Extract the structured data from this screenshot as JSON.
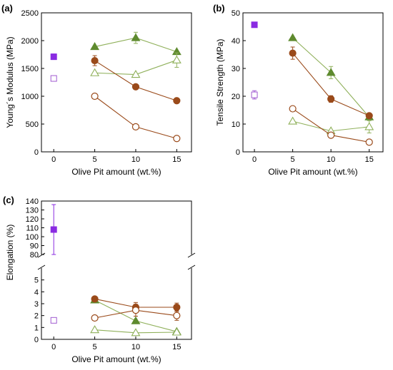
{
  "colors": {
    "brown": "#9a4a1a",
    "olive_line": "#8fb05a",
    "olive_fill": "#5e8a2e",
    "purple": "#8a2be2",
    "purple_open": "#a05ad0",
    "axis": "#000000"
  },
  "chart_data": [
    {
      "id": "a",
      "type": "scatter",
      "panel_label": "(a)",
      "xlabel": "Olive Pit amount (wt.%)",
      "ylabel": "Young´s Modulus (MPa)",
      "xlim": [
        -1.5,
        16.8
      ],
      "ylim": [
        0,
        2500
      ],
      "xticks": [
        0,
        5,
        10,
        15
      ],
      "yticks": [
        0,
        500,
        1000,
        1500,
        2000,
        2500
      ],
      "series": [
        {
          "marker": "square",
          "filled": true,
          "color": "purple",
          "x": [
            0
          ],
          "y": [
            1710
          ],
          "err": [
            50
          ],
          "line": false
        },
        {
          "marker": "square",
          "filled": false,
          "color": "purple_open",
          "x": [
            0
          ],
          "y": [
            1320
          ],
          "err": [
            0
          ],
          "line": false
        },
        {
          "marker": "triangle",
          "filled": true,
          "color": "olive",
          "x": [
            5,
            10,
            15
          ],
          "y": [
            1890,
            2050,
            1800
          ],
          "err": [
            0,
            100,
            0
          ],
          "line": true
        },
        {
          "marker": "triangle",
          "filled": false,
          "color": "olive",
          "x": [
            5,
            10,
            15
          ],
          "y": [
            1420,
            1390,
            1650
          ],
          "err": [
            0,
            0,
            130
          ],
          "line": true
        },
        {
          "marker": "circle",
          "filled": true,
          "color": "brown",
          "x": [
            5,
            10,
            15
          ],
          "y": [
            1640,
            1170,
            920
          ],
          "err": [
            90,
            0,
            0
          ],
          "line": true
        },
        {
          "marker": "circle",
          "filled": false,
          "color": "brown",
          "x": [
            5,
            10,
            15
          ],
          "y": [
            1000,
            450,
            240
          ],
          "err": [
            0,
            0,
            0
          ],
          "line": true
        }
      ]
    },
    {
      "id": "b",
      "type": "scatter",
      "panel_label": "(b)",
      "xlabel": "Olive Pit amount (wt.%)",
      "ylabel": "Tensile Strength (MPa)",
      "xlim": [
        -1.5,
        16.8
      ],
      "ylim": [
        0,
        50
      ],
      "xticks": [
        0,
        5,
        10,
        15
      ],
      "yticks": [
        0,
        10,
        20,
        30,
        40,
        50
      ],
      "series": [
        {
          "marker": "square",
          "filled": true,
          "color": "purple",
          "x": [
            0
          ],
          "y": [
            45.7
          ],
          "err": [
            0.8
          ],
          "line": false
        },
        {
          "marker": "square",
          "filled": false,
          "color": "purple_open",
          "x": [
            0
          ],
          "y": [
            20.5
          ],
          "err": [
            1.5
          ],
          "line": false
        },
        {
          "marker": "triangle",
          "filled": true,
          "color": "olive",
          "x": [
            5,
            10,
            15
          ],
          "y": [
            41,
            28.5,
            12.5
          ],
          "err": [
            0,
            2.2,
            0
          ],
          "line": true
        },
        {
          "marker": "triangle",
          "filled": false,
          "color": "olive",
          "x": [
            5,
            10,
            15
          ],
          "y": [
            11,
            7.5,
            9
          ],
          "err": [
            0,
            0,
            2.2
          ],
          "line": true
        },
        {
          "marker": "circle",
          "filled": true,
          "color": "brown",
          "x": [
            5,
            10,
            15
          ],
          "y": [
            35.5,
            19,
            13
          ],
          "err": [
            2.2,
            1.2,
            0.8
          ],
          "line": true
        },
        {
          "marker": "circle",
          "filled": false,
          "color": "brown",
          "x": [
            5,
            10,
            15
          ],
          "y": [
            15.5,
            6,
            3.5
          ],
          "err": [
            0.6,
            0.6,
            0.6
          ],
          "line": true
        }
      ]
    },
    {
      "id": "c",
      "type": "scatter",
      "panel_label": "(c)",
      "xlabel": "Olive Pit amount (wt.%)",
      "ylabel": "Elongation (%)",
      "xlim": [
        -1.5,
        16.8
      ],
      "axis_break": true,
      "ylim_upper": [
        80,
        140
      ],
      "yticks_upper": [
        80,
        90,
        100,
        110,
        120,
        130,
        140
      ],
      "ylim_lower": [
        0,
        6
      ],
      "yticks_lower": [
        0,
        1,
        2,
        3,
        4,
        5
      ],
      "xticks": [
        0,
        5,
        10,
        15
      ],
      "series": [
        {
          "marker": "square",
          "filled": true,
          "color": "purple",
          "x": [
            0
          ],
          "y": [
            108
          ],
          "err": [
            28
          ],
          "line": false
        },
        {
          "marker": "square",
          "filled": false,
          "color": "purple_open",
          "x": [
            0
          ],
          "y": [
            1.6
          ],
          "err": [
            0
          ],
          "line": false
        },
        {
          "marker": "triangle",
          "filled": true,
          "color": "olive",
          "x": [
            5,
            10,
            15
          ],
          "y": [
            3.3,
            1.55,
            0.65
          ],
          "err": [
            0,
            0,
            0
          ],
          "line": true
        },
        {
          "marker": "triangle",
          "filled": false,
          "color": "olive",
          "x": [
            5,
            10,
            15
          ],
          "y": [
            0.8,
            0.55,
            0.6
          ],
          "err": [
            0,
            0,
            0
          ],
          "line": true
        },
        {
          "marker": "circle",
          "filled": true,
          "color": "brown",
          "x": [
            5,
            10,
            15
          ],
          "y": [
            3.4,
            2.7,
            2.7
          ],
          "err": [
            0,
            0.4,
            0.35
          ],
          "line": true
        },
        {
          "marker": "circle",
          "filled": false,
          "color": "brown",
          "x": [
            5,
            10,
            15
          ],
          "y": [
            1.8,
            2.45,
            2.0
          ],
          "err": [
            0,
            0.5,
            0.4
          ],
          "line": true
        }
      ]
    }
  ]
}
